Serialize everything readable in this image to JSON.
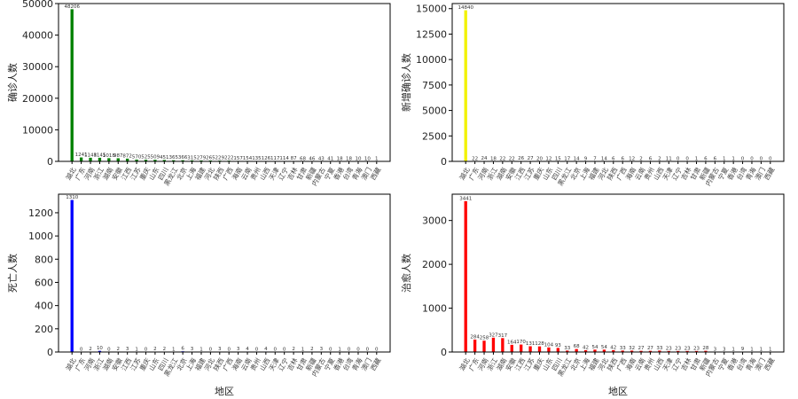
{
  "chart_data": [
    {
      "type": "bar",
      "ylabel": "确诊人数",
      "xlabel": "",
      "ylim": [
        0,
        50000
      ],
      "yticks": [
        0,
        10000,
        20000,
        30000,
        40000,
        50000
      ],
      "color": "#008000",
      "values": [
        48206,
        1241,
        1148,
        1145,
        1018,
        987,
        872,
        570,
        525,
        509,
        451,
        365,
        366,
        315,
        279,
        265,
        229,
        222,
        157,
        154,
        135,
        126,
        117,
        114,
        87,
        68,
        46,
        43,
        41,
        18,
        18,
        10,
        10,
        1
      ]
    },
    {
      "type": "bar",
      "ylabel": "新增确诊人数",
      "xlabel": "",
      "ylim": [
        0,
        15500
      ],
      "yticks": [
        0,
        2500,
        5000,
        7500,
        10000,
        12500,
        15000
      ],
      "color": "#f2f200",
      "values": [
        14840,
        22,
        24,
        18,
        22,
        22,
        26,
        27,
        20,
        12,
        15,
        17,
        14,
        9,
        7,
        14,
        6,
        6,
        12,
        2,
        6,
        2,
        11,
        0,
        0,
        1,
        6,
        6,
        1,
        1,
        0,
        0,
        0,
        0
      ]
    },
    {
      "type": "bar",
      "ylabel": "死亡人数",
      "xlabel": "地区",
      "ylim": [
        0,
        1360
      ],
      "yticks": [
        0,
        200,
        400,
        600,
        800,
        1000,
        1200
      ],
      "color": "#0000ff",
      "values": [
        1310,
        0,
        2,
        10,
        0,
        2,
        3,
        1,
        0,
        2,
        2,
        1,
        6,
        3,
        1,
        0,
        3,
        0,
        3,
        4,
        0,
        4,
        0,
        0,
        2,
        1,
        2,
        3,
        0,
        1,
        0,
        0,
        0,
        0
      ]
    },
    {
      "type": "bar",
      "ylabel": "治愈人数",
      "xlabel": "地区",
      "ylim": [
        0,
        3600
      ],
      "yticks": [
        0,
        1000,
        2000,
        3000
      ],
      "color": "#ff0000",
      "values": [
        3441,
        284,
        258,
        327,
        317,
        164,
        170,
        131,
        128,
        104,
        93,
        33,
        68,
        42,
        54,
        54,
        42,
        33,
        32,
        27,
        27,
        33,
        23,
        23,
        23,
        23,
        28,
        3,
        3,
        1,
        9,
        1,
        1,
        1
      ]
    }
  ],
  "xtick_labels": [
    "湖北",
    "广东",
    "河南",
    "浙江",
    "湖南",
    "安徽",
    "江西",
    "江苏",
    "重庆",
    "山东",
    "四川",
    "黑龙江",
    "北京",
    "上海",
    "福建",
    "河北",
    "陕西",
    "广西",
    "海南",
    "云南",
    "贵州",
    "山西",
    "天津",
    "辽宁",
    "吉林",
    "甘肃",
    "新疆",
    "内蒙古",
    "宁夏",
    "香港",
    "台湾",
    "青海",
    "澳门",
    "西藏"
  ]
}
